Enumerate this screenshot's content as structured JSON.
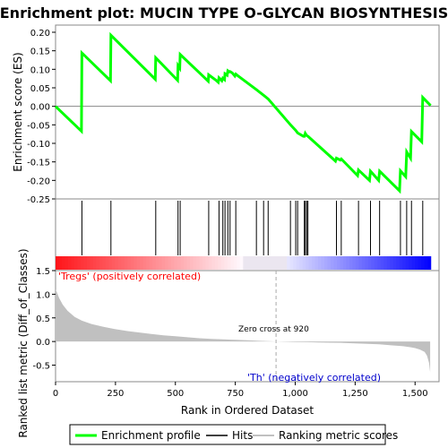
{
  "chart_data": [
    {
      "type": "line",
      "title": "Enrichment plot: MUCIN TYPE O-GLYCAN BIOSYNTHESIS",
      "ylabel": "Enrichment score (ES)",
      "xlim": [
        0,
        1600
      ],
      "ylim": [
        -0.25,
        0.2
      ],
      "yticks": [
        "0.20",
        "0.15",
        "0.10",
        "0.05",
        "0.00",
        "-0.05",
        "-0.10",
        "-0.15",
        "-0.20",
        "-0.25"
      ],
      "grid": false,
      "line_color": "#00ff00",
      "series": [
        {
          "name": "Enrichment profile",
          "x": [
            0,
            108,
            110,
            229,
            231,
            416,
            418,
            509,
            511,
            518,
            520,
            637,
            639,
            668,
            679,
            682,
            694,
            698,
            705,
            707,
            716,
            719,
            725,
            728,
            738,
            748,
            752,
            760,
            838,
            868,
            887,
            980,
            1002,
            1010,
            1034,
            1038,
            1042,
            1048,
            1053,
            1168,
            1172,
            1188,
            1192,
            1260,
            1264,
            1310,
            1314,
            1348,
            1352,
            1435,
            1439,
            1461,
            1465,
            1481,
            1485,
            1528,
            1532,
            1565
          ],
          "y": [
            0.0,
            -0.067,
            0.144,
            0.069,
            0.192,
            0.073,
            0.131,
            0.07,
            0.11,
            0.103,
            0.14,
            0.068,
            0.085,
            0.071,
            0.065,
            0.077,
            0.069,
            0.076,
            0.072,
            0.088,
            0.084,
            0.096,
            0.093,
            0.094,
            0.09,
            0.082,
            0.087,
            0.083,
            0.045,
            0.03,
            0.02,
            -0.05,
            -0.065,
            -0.072,
            -0.081,
            -0.081,
            -0.073,
            -0.079,
            -0.081,
            -0.148,
            -0.14,
            -0.145,
            -0.142,
            -0.187,
            -0.172,
            -0.2,
            -0.175,
            -0.2,
            -0.175,
            -0.228,
            -0.174,
            -0.19,
            -0.123,
            -0.14,
            -0.068,
            -0.096,
            0.024,
            0.002
          ]
        }
      ]
    },
    {
      "type": "hits",
      "xlim": [
        0,
        1600
      ],
      "hit_positions": [
        110,
        231,
        418,
        511,
        520,
        639,
        682,
        698,
        707,
        719,
        728,
        752,
        838,
        868,
        887,
        980,
        1002,
        1010,
        1038,
        1042,
        1048,
        1053,
        1172,
        1192,
        1264,
        1314,
        1352,
        1439,
        1465,
        1485,
        1532
      ],
      "legend": [
        "Enrichment profile",
        "Hits",
        "Ranking metric scores"
      ]
    },
    {
      "type": "area",
      "ylabel": "Ranked list metric (Diff_of_Classes)",
      "xlabel": "Rank in Ordered Dataset",
      "xlim": [
        0,
        1600
      ],
      "ylim": [
        -0.85,
        1.5
      ],
      "yticks": [
        "1.5",
        "1.0",
        "0.5",
        "0.0",
        "-0.5"
      ],
      "xticks": [
        "0",
        "250",
        "500",
        "750",
        "1,000",
        "1,250",
        "1,500"
      ],
      "fill_color": "#c0c0c0",
      "x": [
        0,
        5,
        15,
        30,
        50,
        80,
        110,
        150,
        200,
        250,
        300,
        350,
        400,
        450,
        500,
        550,
        600,
        650,
        700,
        750,
        800,
        850,
        900,
        920,
        950,
        1000,
        1050,
        1100,
        1150,
        1200,
        1250,
        1300,
        1350,
        1400,
        1450,
        1480,
        1500,
        1520,
        1540,
        1550,
        1558,
        1563
      ],
      "values": [
        1.1,
        1.05,
        0.92,
        0.78,
        0.65,
        0.52,
        0.44,
        0.37,
        0.31,
        0.26,
        0.22,
        0.19,
        0.16,
        0.13,
        0.11,
        0.09,
        0.07,
        0.055,
        0.045,
        0.035,
        0.025,
        0.015,
        0.005,
        0.0,
        -0.005,
        -0.01,
        -0.015,
        -0.02,
        -0.025,
        -0.03,
        -0.04,
        -0.05,
        -0.06,
        -0.08,
        -0.1,
        -0.12,
        -0.14,
        -0.17,
        -0.22,
        -0.3,
        -0.45,
        -0.65
      ],
      "zero_cross_label": "Zero cross at 920",
      "zero_cross": 920,
      "pos_label": "'Tregs' (positively correlated)",
      "neg_label": "'Th' (negatively correlated)",
      "pos_color": "#ff0000",
      "neg_color": "#0000ff"
    }
  ]
}
